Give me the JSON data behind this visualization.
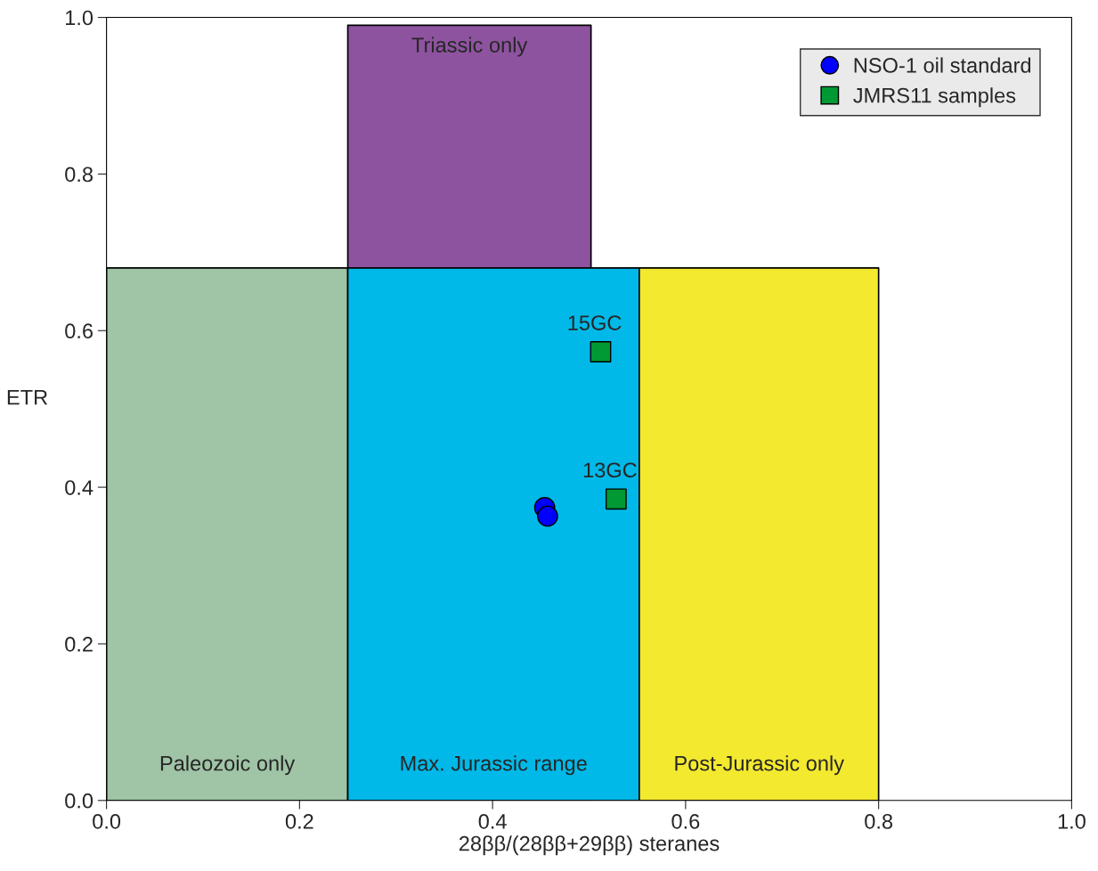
{
  "chart_data": {
    "type": "scatter",
    "xlabel": "28ββ/(28ββ+29ββ) steranes",
    "ylabel": "ETR",
    "xlim": [
      0,
      1
    ],
    "ylim": [
      0,
      1
    ],
    "xticks": [
      {
        "value": 0,
        "label": "0.0"
      },
      0.2,
      0.4,
      0.6,
      0.8,
      {
        "value": 1,
        "label": "1.0"
      }
    ],
    "yticks": [
      {
        "value": 0,
        "label": "0.0"
      },
      0.2,
      0.4,
      0.6,
      0.8,
      {
        "value": 1,
        "label": "1.0"
      }
    ],
    "grid": false,
    "legend": "top right",
    "series": [
      {
        "type": "area",
        "name": "Triassic only",
        "color": "#8e539f",
        "x": [
          0.25,
          0.502
        ],
        "values": [
          0.99,
          0.99
        ]
      },
      {
        "type": "area",
        "name": "Paleozoic only",
        "color": "#a0c4a6",
        "x": [
          0,
          0.25
        ],
        "values": [
          0.68,
          0.68
        ]
      },
      {
        "type": "area",
        "name": "Max. Jurassic range",
        "color": "#00b9e8",
        "x": [
          0.25,
          0.552
        ],
        "values": [
          0.68,
          0.68
        ]
      },
      {
        "type": "area",
        "name": "Post-Jurassic only",
        "color": "#f3e92f",
        "x": [
          0.552,
          0.8
        ],
        "values": [
          0.68,
          0.68
        ]
      },
      {
        "name": "NSO-1 oil standard",
        "color": "#0000ff",
        "marker": "circle",
        "x": [
          0.454,
          0.457
        ],
        "values": [
          0.374,
          0.363
        ]
      },
      {
        "name": "JMRS11 samples",
        "color": "#009933",
        "marker": "square",
        "x": [
          0.512,
          0.528
        ],
        "values": [
          0.573,
          0.385
        ]
      }
    ],
    "annotations": [
      {
        "text": "15GC",
        "x": 0.512,
        "y": 0.573
      },
      {
        "text": "13GC",
        "x": 0.528,
        "y": 0.385
      }
    ]
  }
}
